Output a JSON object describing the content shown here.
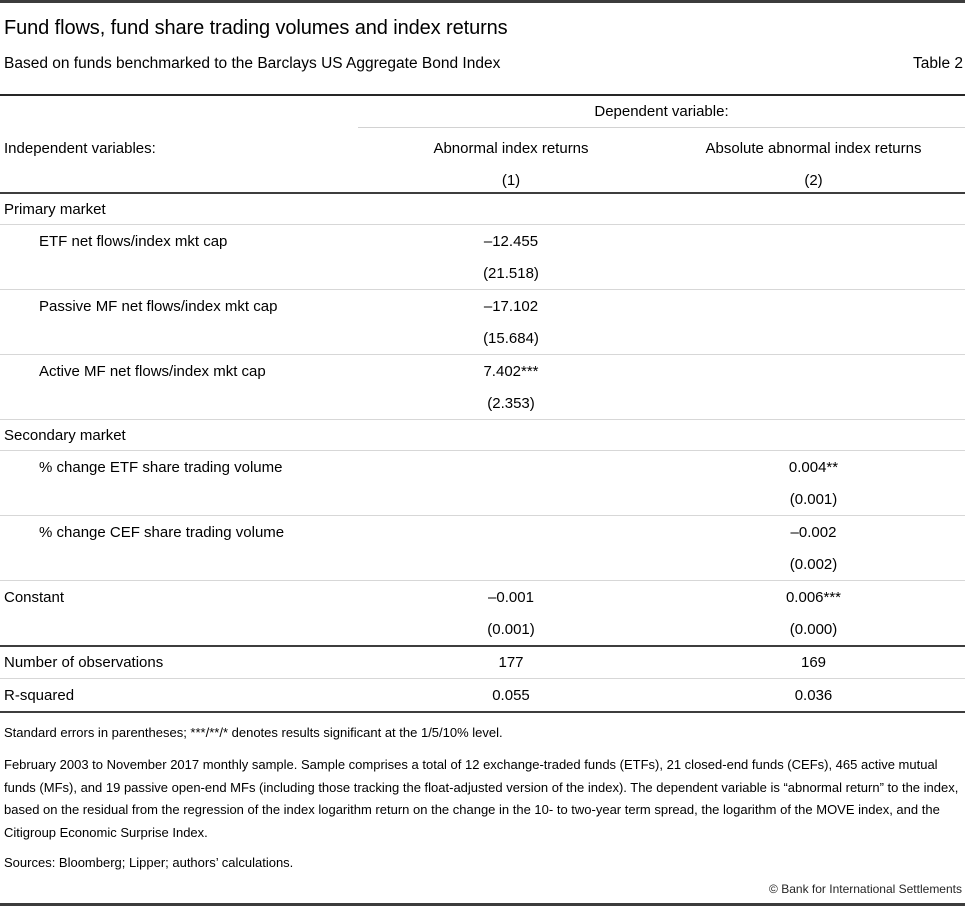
{
  "page": {
    "title": "Fund flows, fund share trading volumes and index returns",
    "subtitle": "Based on funds benchmarked to the Barclays US Aggregate Bond Index",
    "table_label": "Table 2"
  },
  "table": {
    "dependent_variable_header": "Dependent variable:",
    "independent_variables_label": "Independent variables:",
    "columns": [
      {
        "name": "Abnormal index returns",
        "number": "(1)"
      },
      {
        "name": "Absolute abnormal index returns",
        "number": "(2)"
      }
    ],
    "rows": [
      {
        "type": "section",
        "label": "Primary market"
      },
      {
        "type": "variable",
        "indent": true,
        "label": "ETF net flows/index mkt cap",
        "coef": [
          "–12.455",
          ""
        ],
        "se": [
          "(21.518)",
          ""
        ]
      },
      {
        "type": "variable",
        "indent": true,
        "label": "Passive MF net flows/index mkt cap",
        "coef": [
          "–17.102",
          ""
        ],
        "se": [
          "(15.684)",
          ""
        ]
      },
      {
        "type": "variable",
        "indent": true,
        "label": "Active MF net flows/index mkt cap",
        "coef": [
          "7.402***",
          ""
        ],
        "se": [
          "(2.353)",
          ""
        ]
      },
      {
        "type": "section",
        "label": "Secondary market"
      },
      {
        "type": "variable",
        "indent": true,
        "label": "% change ETF share trading volume",
        "coef": [
          "",
          "0.004**"
        ],
        "se": [
          "",
          "(0.001)"
        ]
      },
      {
        "type": "variable",
        "indent": true,
        "label": "% change CEF share trading volume",
        "coef": [
          "",
          "–0.002"
        ],
        "se": [
          "",
          "(0.002)"
        ]
      },
      {
        "type": "variable",
        "indent": false,
        "label": "Constant",
        "coef": [
          "–0.001",
          "0.006***"
        ],
        "se": [
          "(0.001)",
          "(0.000)"
        ]
      },
      {
        "type": "stat",
        "label": "Number of observations",
        "values": [
          "177",
          "169"
        ]
      },
      {
        "type": "stat",
        "label": "R-squared",
        "values": [
          "0.055",
          "0.036"
        ]
      }
    ]
  },
  "notes": {
    "significance": "Standard errors in parentheses; ***/**/* denotes results significant at the 1/5/10% level.",
    "sample": "February 2003 to November 2017 monthly sample. Sample comprises a total of 12 exchange-traded funds (ETFs), 21 closed-end funds (CEFs), 465 active mutual funds (MFs), and 19 passive open-end MFs (including those tracking the float-adjusted version of the index). The dependent variable is “abnormal return” to the index, based on the residual from the regression of the index logarithm return on the change in the 10- to two-year term spread, the logarithm of the MOVE index, and the Citigroup Economic Surprise Index.",
    "sources": "Sources: Bloomberg; Lipper; authors’ calculations."
  },
  "footer": {
    "copyright": "© Bank for International Settlements"
  },
  "colors": {
    "rule_dark": "#3c3c3c",
    "rule_light": "#d7d7d7",
    "text": "#000000"
  }
}
